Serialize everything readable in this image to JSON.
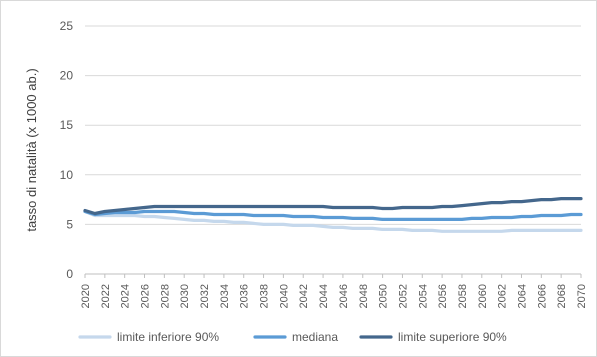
{
  "chart_data": {
    "type": "line",
    "title": "",
    "xlabel": "",
    "ylabel": "tasso di natalità (x 1000 ab.)",
    "ylim": [
      0,
      25
    ],
    "yticks": [
      0,
      5,
      10,
      15,
      20,
      25
    ],
    "grid": true,
    "legend_position": "bottom",
    "x": [
      2020,
      2021,
      2022,
      2023,
      2024,
      2025,
      2026,
      2027,
      2028,
      2029,
      2030,
      2031,
      2032,
      2033,
      2034,
      2035,
      2036,
      2037,
      2038,
      2039,
      2040,
      2041,
      2042,
      2043,
      2044,
      2045,
      2046,
      2047,
      2048,
      2049,
      2050,
      2051,
      2052,
      2053,
      2054,
      2055,
      2056,
      2057,
      2058,
      2059,
      2060,
      2061,
      2062,
      2063,
      2064,
      2065,
      2066,
      2067,
      2068,
      2069,
      2070
    ],
    "xticks": [
      "2020",
      "2022",
      "2024",
      "2026",
      "2028",
      "2030",
      "2032",
      "2034",
      "2036",
      "2038",
      "2040",
      "2042",
      "2044",
      "2046",
      "2048",
      "2050",
      "2052",
      "2054",
      "2056",
      "2058",
      "2060",
      "2062",
      "2064",
      "2066",
      "2068",
      "2070"
    ],
    "series": [
      {
        "name": "limite inferiore 90%",
        "color": "#c5d8ec",
        "values": [
          6.3,
          5.9,
          5.9,
          5.9,
          5.9,
          5.9,
          5.8,
          5.8,
          5.7,
          5.6,
          5.5,
          5.4,
          5.4,
          5.3,
          5.3,
          5.2,
          5.2,
          5.1,
          5.0,
          5.0,
          5.0,
          4.9,
          4.9,
          4.9,
          4.8,
          4.7,
          4.7,
          4.6,
          4.6,
          4.6,
          4.5,
          4.5,
          4.5,
          4.4,
          4.4,
          4.4,
          4.3,
          4.3,
          4.3,
          4.3,
          4.3,
          4.3,
          4.3,
          4.4,
          4.4,
          4.4,
          4.4,
          4.4,
          4.4,
          4.4,
          4.4
        ]
      },
      {
        "name": "mediana",
        "color": "#5b9bd5",
        "values": [
          6.3,
          6.0,
          6.1,
          6.2,
          6.2,
          6.2,
          6.3,
          6.3,
          6.3,
          6.3,
          6.2,
          6.1,
          6.1,
          6.0,
          6.0,
          6.0,
          6.0,
          5.9,
          5.9,
          5.9,
          5.9,
          5.8,
          5.8,
          5.8,
          5.7,
          5.7,
          5.7,
          5.6,
          5.6,
          5.6,
          5.5,
          5.5,
          5.5,
          5.5,
          5.5,
          5.5,
          5.5,
          5.5,
          5.5,
          5.6,
          5.6,
          5.7,
          5.7,
          5.7,
          5.8,
          5.8,
          5.9,
          5.9,
          5.9,
          6.0,
          6.0
        ]
      },
      {
        "name": "limite superiore 90%",
        "color": "#44678c",
        "values": [
          6.4,
          6.1,
          6.3,
          6.4,
          6.5,
          6.6,
          6.7,
          6.8,
          6.8,
          6.8,
          6.8,
          6.8,
          6.8,
          6.8,
          6.8,
          6.8,
          6.8,
          6.8,
          6.8,
          6.8,
          6.8,
          6.8,
          6.8,
          6.8,
          6.8,
          6.7,
          6.7,
          6.7,
          6.7,
          6.7,
          6.6,
          6.6,
          6.7,
          6.7,
          6.7,
          6.7,
          6.8,
          6.8,
          6.9,
          7.0,
          7.1,
          7.2,
          7.2,
          7.3,
          7.3,
          7.4,
          7.5,
          7.5,
          7.6,
          7.6,
          7.6
        ]
      }
    ]
  }
}
